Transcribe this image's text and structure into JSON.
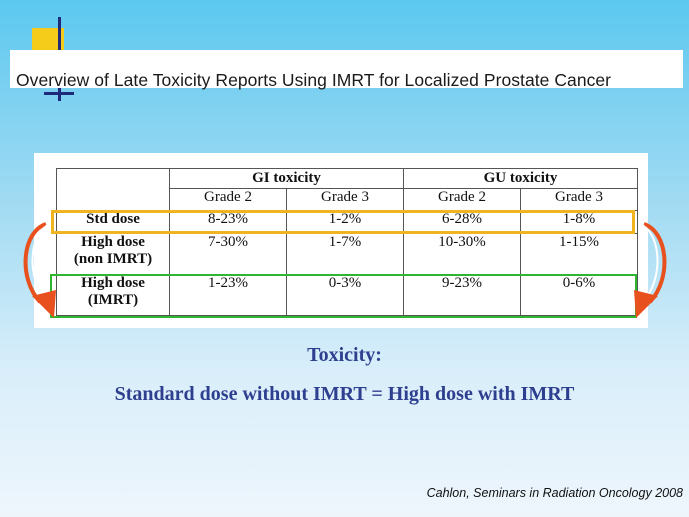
{
  "title": "Overview of Late Toxicity Reports Using IMRT for Localized Prostate Cancer",
  "table": {
    "groups": [
      "GI toxicity",
      "GU toxicity"
    ],
    "grades": [
      "Grade 2",
      "Grade 3",
      "Grade 2",
      "Grade 3"
    ],
    "rows": [
      {
        "label": "Std dose",
        "values": [
          "8-23%",
          "1-2%",
          "6-28%",
          "1-8%"
        ]
      },
      {
        "label": "High dose (non IMRT)",
        "label_line1": "High dose",
        "label_line2": "(non IMRT)",
        "values": [
          "7-30%",
          "1-7%",
          "10-30%",
          "1-15%"
        ]
      },
      {
        "label": "High dose (IMRT)",
        "label_line1": "High dose",
        "label_line2": "(IMRT)",
        "values": [
          "1-23%",
          "0-3%",
          "9-23%",
          "0-6%"
        ]
      }
    ]
  },
  "caption": {
    "line1": "Toxicity:",
    "line2": "Standard dose without IMRT = High dose with IMRT"
  },
  "citation": "Cahlon, Seminars in Radiation Oncology 2008",
  "colors": {
    "highlight_std": "#f0b41e",
    "highlight_imrt": "#2fb52f",
    "arrow": "#e8501e",
    "caption_text": "#2e3f8f"
  }
}
